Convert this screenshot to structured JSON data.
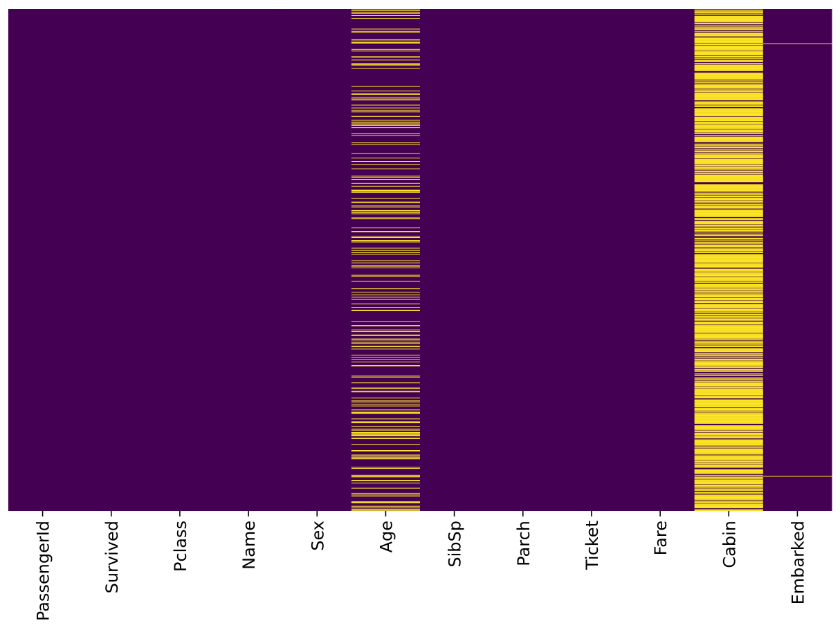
{
  "chart_data": {
    "type": "heatmap",
    "title": "",
    "xlabel": "",
    "ylabel": "",
    "columns": [
      "PassengerId",
      "Survived",
      "Pclass",
      "Name",
      "Sex",
      "Age",
      "SibSp",
      "Parch",
      "Ticket",
      "Fare",
      "Cabin",
      "Embarked"
    ],
    "n_rows": 891,
    "colormap": "viridis",
    "colors": {
      "present": "#440154",
      "missing": "#fde725"
    },
    "missing_counts": {
      "PassengerId": 0,
      "Survived": 0,
      "Pclass": 0,
      "Name": 0,
      "Sex": 0,
      "Age": 177,
      "SibSp": 0,
      "Parch": 0,
      "Ticket": 0,
      "Fare": 0,
      "Cabin": 687,
      "Embarked": 2
    },
    "missing_rows": {
      "Embarked": [
        61,
        829
      ]
    },
    "y_tick_labels": "hidden",
    "colorbar": false,
    "grid": false
  }
}
